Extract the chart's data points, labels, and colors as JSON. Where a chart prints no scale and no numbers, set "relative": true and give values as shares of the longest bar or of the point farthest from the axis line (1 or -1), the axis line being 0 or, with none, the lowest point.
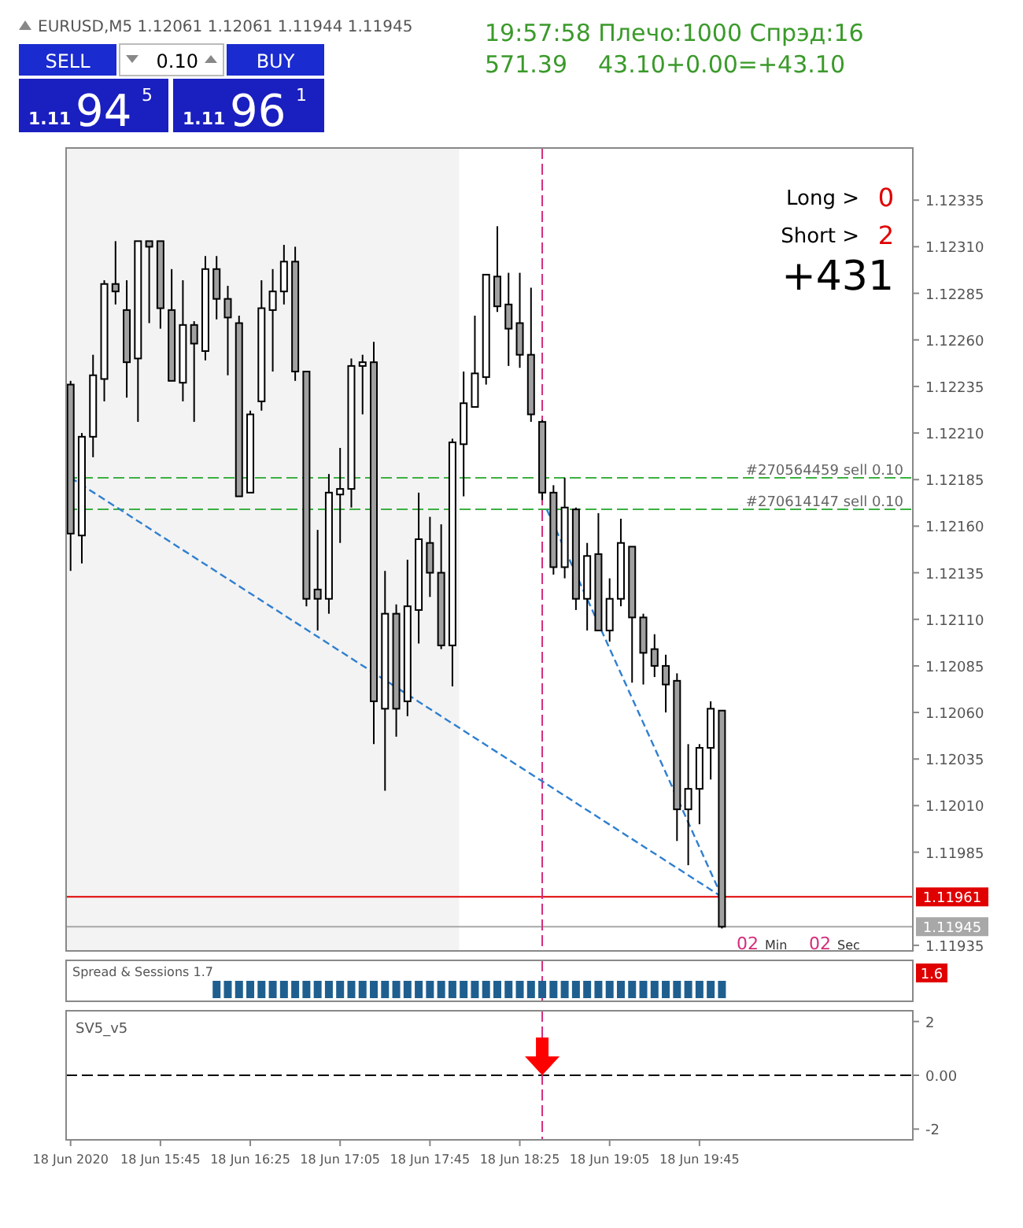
{
  "chart_data": [
    {
      "type": "candlestick",
      "title": "EURUSD,M5  1.12061 1.12061 1.11944 1.11945",
      "x": [
        "2020-06-18T15:05",
        "2020-06-18T15:10",
        "2020-06-18T15:15",
        "2020-06-18T15:20",
        "2020-06-18T15:25",
        "2020-06-18T15:30",
        "2020-06-18T15:35",
        "2020-06-18T15:40",
        "2020-06-18T15:45",
        "2020-06-18T15:50",
        "2020-06-18T15:55",
        "2020-06-18T16:00",
        "2020-06-18T16:05",
        "2020-06-18T16:10",
        "2020-06-18T16:15",
        "2020-06-18T16:20",
        "2020-06-18T16:25",
        "2020-06-18T16:30",
        "2020-06-18T16:35",
        "2020-06-18T16:40",
        "2020-06-18T16:45",
        "2020-06-18T16:50",
        "2020-06-18T16:55",
        "2020-06-18T17:00",
        "2020-06-18T17:05",
        "2020-06-18T17:10",
        "2020-06-18T17:15",
        "2020-06-18T17:20",
        "2020-06-18T17:25",
        "2020-06-18T17:30",
        "2020-06-18T17:35",
        "2020-06-18T17:40",
        "2020-06-18T17:45",
        "2020-06-18T17:50",
        "2020-06-18T17:55",
        "2020-06-18T18:00",
        "2020-06-18T18:05",
        "2020-06-18T18:10",
        "2020-06-18T18:15",
        "2020-06-18T18:20",
        "2020-06-18T18:25",
        "2020-06-18T18:30",
        "2020-06-18T18:35",
        "2020-06-18T18:40",
        "2020-06-18T18:45",
        "2020-06-18T18:50",
        "2020-06-18T18:55",
        "2020-06-18T19:00",
        "2020-06-18T19:05",
        "2020-06-18T19:10",
        "2020-06-18T19:15",
        "2020-06-18T19:20",
        "2020-06-18T19:25",
        "2020-06-18T19:30",
        "2020-06-18T19:35",
        "2020-06-18T19:40",
        "2020-06-18T19:45",
        "2020-06-18T19:50",
        "2020-06-18T19:55"
      ],
      "ohlc": [
        [
          1.12236,
          1.12238,
          1.12136,
          1.12156
        ],
        [
          1.12155,
          1.1221,
          1.1214,
          1.12208
        ],
        [
          1.12208,
          1.12252,
          1.12197,
          1.12241
        ],
        [
          1.12239,
          1.12292,
          1.12227,
          1.1229
        ],
        [
          1.1229,
          1.12313,
          1.12279,
          1.12286
        ],
        [
          1.12276,
          1.12292,
          1.12229,
          1.12248
        ],
        [
          1.1225,
          1.12313,
          1.12216,
          1.12313
        ],
        [
          1.12313,
          1.12313,
          1.12269,
          1.1231
        ],
        [
          1.12313,
          1.12313,
          1.12266,
          1.12277
        ],
        [
          1.12276,
          1.12298,
          1.12238,
          1.12238
        ],
        [
          1.12237,
          1.12292,
          1.12227,
          1.12268
        ],
        [
          1.12268,
          1.1227,
          1.12216,
          1.12258
        ],
        [
          1.12254,
          1.12305,
          1.12249,
          1.12298
        ],
        [
          1.12298,
          1.12305,
          1.12271,
          1.12282
        ],
        [
          1.12282,
          1.12289,
          1.12241,
          1.12272
        ],
        [
          1.12269,
          1.12273,
          1.12176,
          1.12176
        ],
        [
          1.12178,
          1.12222,
          1.12178,
          1.1222
        ],
        [
          1.12227,
          1.12292,
          1.12222,
          1.12277
        ],
        [
          1.12276,
          1.12298,
          1.12243,
          1.12286
        ],
        [
          1.12286,
          1.12311,
          1.12279,
          1.12302
        ],
        [
          1.12302,
          1.1231,
          1.12238,
          1.12243
        ],
        [
          1.12243,
          1.12243,
          1.12117,
          1.12121
        ],
        [
          1.12126,
          1.12158,
          1.12104,
          1.12121
        ],
        [
          1.12121,
          1.12188,
          1.12113,
          1.12178
        ],
        [
          1.12177,
          1.12202,
          1.12151,
          1.1218
        ],
        [
          1.1218,
          1.1225,
          1.1217,
          1.12246
        ],
        [
          1.12246,
          1.12252,
          1.1222,
          1.12248
        ],
        [
          1.12248,
          1.12259,
          1.12043,
          1.12066
        ],
        [
          1.12062,
          1.12136,
          1.12018,
          1.12113
        ],
        [
          1.12113,
          1.12118,
          1.12047,
          1.12062
        ],
        [
          1.12066,
          1.12142,
          1.12058,
          1.12117
        ],
        [
          1.12115,
          1.12178,
          1.12097,
          1.12153
        ],
        [
          1.12151,
          1.12165,
          1.12122,
          1.12135
        ],
        [
          1.12135,
          1.12161,
          1.12094,
          1.12096
        ],
        [
          1.12096,
          1.12207,
          1.12074,
          1.12205
        ],
        [
          1.12204,
          1.12243,
          1.12176,
          1.12226
        ],
        [
          1.12224,
          1.12273,
          1.12224,
          1.12242
        ],
        [
          1.1224,
          1.12295,
          1.12236,
          1.12295
        ],
        [
          1.12294,
          1.12321,
          1.12275,
          1.12278
        ],
        [
          1.12279,
          1.12296,
          1.12246,
          1.12266
        ],
        [
          1.12269,
          1.12296,
          1.12245,
          1.12252
        ],
        [
          1.12252,
          1.12288,
          1.12216,
          1.1222
        ],
        [
          1.12216,
          1.12217,
          1.12174,
          1.12178
        ],
        [
          1.12178,
          1.12182,
          1.12134,
          1.12138
        ],
        [
          1.12138,
          1.12186,
          1.12132,
          1.1217
        ],
        [
          1.12169,
          1.1217,
          1.12115,
          1.12121
        ],
        [
          1.12121,
          1.12151,
          1.12104,
          1.12144
        ],
        [
          1.12145,
          1.12167,
          1.12104,
          1.12104
        ],
        [
          1.12104,
          1.12132,
          1.12098,
          1.12121
        ],
        [
          1.12121,
          1.12164,
          1.12117,
          1.12151
        ],
        [
          1.12149,
          1.12149,
          1.12076,
          1.12111
        ],
        [
          1.12111,
          1.12113,
          1.12075,
          1.12092
        ],
        [
          1.12094,
          1.12102,
          1.12079,
          1.12085
        ],
        [
          1.12085,
          1.12091,
          1.1206,
          1.12075
        ],
        [
          1.12077,
          1.12081,
          1.11991,
          1.12008
        ],
        [
          1.12008,
          1.12043,
          1.11978,
          1.12019
        ],
        [
          1.12019,
          1.12043,
          1.12,
          1.12041
        ],
        [
          1.12041,
          1.12066,
          1.12024,
          1.12062
        ],
        [
          1.12061,
          1.12061,
          1.11944,
          1.11945
        ]
      ],
      "series": [
        {
          "type": "line",
          "x": [
            "2020-06-18T15:05",
            "2020-06-18T19:55"
          ],
          "values": [
            1.12186,
            1.11961
          ],
          "color": "#2f7fd0",
          "line_style": "dashed"
        },
        {
          "type": "line",
          "x": [
            "2020-06-18T18:37",
            "2020-06-18T19:55"
          ],
          "values": [
            1.12169,
            1.11961
          ],
          "color": "#2f7fd0",
          "line_style": "dashed"
        }
      ],
      "xlim": [
        "2020-06-18T15:03",
        "2020-06-18T21:20"
      ],
      "ylim": [
        1.11932,
        1.12363
      ],
      "yticks": [
        {
          "value": 1.11935,
          "label": "1.11935"
        },
        {
          "value": 1.11985,
          "label": "1.11985"
        },
        {
          "value": 1.1201,
          "label": "1.12010"
        },
        {
          "value": 1.12035,
          "label": "1.12035"
        },
        {
          "value": 1.1206,
          "label": "1.12060"
        },
        {
          "value": 1.12085,
          "label": "1.12085"
        },
        {
          "value": 1.1211,
          "label": "1.12110"
        },
        {
          "value": 1.12135,
          "label": "1.12135"
        },
        {
          "value": 1.1216,
          "label": "1.12160"
        },
        {
          "value": 1.12185,
          "label": "1.12185"
        },
        {
          "value": 1.1221,
          "label": "1.12210"
        },
        {
          "value": 1.12235,
          "label": "1.12235"
        },
        {
          "value": 1.1226,
          "label": "1.12260"
        },
        {
          "value": 1.12285,
          "label": "1.12285"
        },
        {
          "value": 1.1231,
          "label": "1.12310"
        },
        {
          "value": 1.12335,
          "label": "1.12335"
        }
      ],
      "tick_labels": "y",
      "bands": [
        {
          "axis": "x",
          "from": "2020-06-18T15:03",
          "to": "2020-06-18T17:58",
          "color": "#f3f3f3"
        }
      ],
      "ref_lines": [
        {
          "axis": "y",
          "value": 1.12186,
          "label": "#270564459 sell 0.10",
          "color": "#3cb043",
          "line_style": "dashed"
        },
        {
          "axis": "y",
          "value": 1.12169,
          "label": "#270614147 sell 0.10",
          "color": "#3cb043",
          "line_style": "dashed"
        },
        {
          "axis": "y",
          "value": 1.11961,
          "label": "1.11961",
          "color": "#e00000",
          "line_style": "solid"
        },
        {
          "axis": "y",
          "value": 1.11945,
          "label": "1.11945",
          "color": "#a8a8a8",
          "line_style": "solid"
        },
        {
          "axis": "x",
          "value": "2020-06-18T18:35",
          "color": "#d42c7a",
          "line_style": "dashed"
        }
      ],
      "annotations": [
        "19:57:58 Плечо:1000 Спрэд:16",
        "571.39",
        "43.10+0.00=+43.10",
        "SELL",
        "0.10",
        "BUY",
        "1.11",
        "94",
        "5",
        "1.11",
        "96",
        "1",
        "Long >",
        "0",
        "Short >",
        "2",
        "+431",
        "02",
        "Min",
        "02",
        "Sec"
      ]
    },
    {
      "type": "bar",
      "relative": true,
      "x": [
        "2020-06-18T16:10",
        "2020-06-18T16:15",
        "2020-06-18T16:20",
        "2020-06-18T16:25",
        "2020-06-18T16:30",
        "2020-06-18T16:35",
        "2020-06-18T16:40",
        "2020-06-18T16:45",
        "2020-06-18T16:50",
        "2020-06-18T16:55",
        "2020-06-18T17:00",
        "2020-06-18T17:05",
        "2020-06-18T17:10",
        "2020-06-18T17:15",
        "2020-06-18T17:20",
        "2020-06-18T17:25",
        "2020-06-18T17:30",
        "2020-06-18T17:35",
        "2020-06-18T17:40",
        "2020-06-18T17:45",
        "2020-06-18T17:50",
        "2020-06-18T17:55",
        "2020-06-18T18:00",
        "2020-06-18T18:05",
        "2020-06-18T18:10",
        "2020-06-18T18:15",
        "2020-06-18T18:20",
        "2020-06-18T18:25",
        "2020-06-18T18:30",
        "2020-06-18T18:35",
        "2020-06-18T18:40",
        "2020-06-18T18:45",
        "2020-06-18T18:50",
        "2020-06-18T18:55",
        "2020-06-18T19:00",
        "2020-06-18T19:05",
        "2020-06-18T19:10",
        "2020-06-18T19:15",
        "2020-06-18T19:20",
        "2020-06-18T19:25",
        "2020-06-18T19:30",
        "2020-06-18T19:35",
        "2020-06-18T19:40",
        "2020-06-18T19:45",
        "2020-06-18T19:50",
        "2020-06-18T19:55"
      ],
      "values": [
        1,
        1,
        1,
        1,
        1,
        1,
        1,
        1,
        1,
        1,
        1,
        1,
        1,
        1,
        1,
        1,
        1,
        1,
        1,
        1,
        1,
        1,
        1,
        1,
        1,
        1,
        1,
        1,
        1,
        1,
        1,
        1,
        1,
        1,
        1,
        1,
        1,
        1,
        1,
        1,
        1,
        1,
        1,
        1,
        1,
        1
      ],
      "color": "#1f5f8f",
      "xlim": [
        "2020-06-18T15:03",
        "2020-06-18T21:20"
      ],
      "ref_lines": [
        {
          "axis": "x",
          "value": "2020-06-18T18:35",
          "color": "#d42c7a",
          "line_style": "dashed"
        }
      ],
      "annotations": [
        "Spread & Sessions 1.7",
        "1.6"
      ]
    },
    {
      "type": "line",
      "xlim": [
        "2020-06-18T15:03",
        "2020-06-18T21:20"
      ],
      "xticks": [
        {
          "value": "2020-06-18T15:05",
          "label": "18 Jun 2020"
        },
        {
          "value": "2020-06-18T15:45",
          "label": "18 Jun 15:45"
        },
        {
          "value": "2020-06-18T16:25",
          "label": "18 Jun 16:25"
        },
        {
          "value": "2020-06-18T17:05",
          "label": "18 Jun 17:05"
        },
        {
          "value": "2020-06-18T17:45",
          "label": "18 Jun 17:45"
        },
        {
          "value": "2020-06-18T18:25",
          "label": "18 Jun 18:25"
        },
        {
          "value": "2020-06-18T19:05",
          "label": "18 Jun 19:05"
        },
        {
          "value": "2020-06-18T19:45",
          "label": "18 Jun 19:45"
        }
      ],
      "ylim": [
        -2.4,
        2.4
      ],
      "yticks": [
        {
          "value": 2,
          "label": "2"
        },
        {
          "value": 0,
          "label": "0.00"
        },
        {
          "value": -2,
          "label": "-2"
        }
      ],
      "ref_lines": [
        {
          "axis": "y",
          "value": 0,
          "color": "#000000",
          "line_style": "dashed"
        },
        {
          "axis": "x",
          "value": "2020-06-18T18:35",
          "color": "#d42c7a",
          "line_style": "dashed"
        }
      ],
      "annotations": [
        "SV5_v5"
      ]
    }
  ]
}
